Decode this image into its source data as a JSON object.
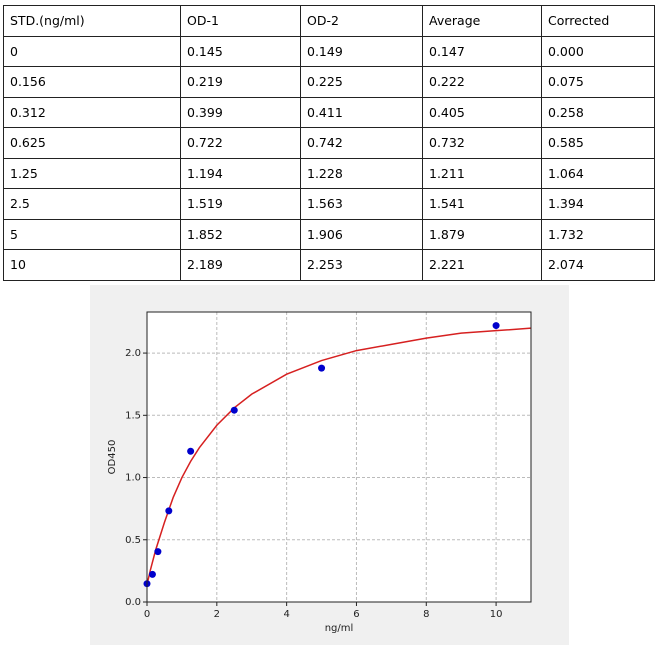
{
  "table": {
    "header": [
      "STD.(ng/ml)",
      "OD-1",
      "OD-2",
      "Average",
      "Corrected"
    ],
    "rows": [
      [
        "0",
        "0.145",
        "0.149",
        "0.147",
        "0.000"
      ],
      [
        "0.156",
        "0.219",
        "0.225",
        "0.222",
        "0.075"
      ],
      [
        "0.312",
        "0.399",
        "0.411",
        "0.405",
        "0.258"
      ],
      [
        "0.625",
        "0.722",
        "0.742",
        "0.732",
        "0.585"
      ],
      [
        "1.25",
        "1.194",
        "1.228",
        "1.211",
        "1.064"
      ],
      [
        "2.5",
        "1.519",
        "1.563",
        "1.541",
        "1.394"
      ],
      [
        "5",
        "1.852",
        "1.906",
        "1.879",
        "1.732"
      ],
      [
        "10",
        "2.189",
        "2.253",
        "2.221",
        "2.074"
      ]
    ]
  },
  "chart_data": {
    "type": "scatter",
    "xlabel": "ng/ml",
    "ylabel": "OD450",
    "xlim": [
      0,
      11
    ],
    "ylim": [
      0,
      2.33
    ],
    "xticks": [
      0,
      2,
      4,
      6,
      8,
      10
    ],
    "yticks": [
      {
        "value": 0,
        "label": "0.0"
      },
      {
        "value": 0.5,
        "label": "0.5"
      },
      {
        "value": 1,
        "label": "1.0"
      },
      {
        "value": 1.5,
        "label": "1.5"
      },
      {
        "value": 2,
        "label": "2.0"
      }
    ],
    "grid": true,
    "series": [
      {
        "type": "scatter",
        "color": "#0000cc",
        "x": [
          0,
          0.156,
          0.312,
          0.625,
          1.25,
          2.5,
          5,
          10
        ],
        "values": [
          0.147,
          0.222,
          0.405,
          0.732,
          1.211,
          1.541,
          1.879,
          2.221
        ]
      },
      {
        "type": "line",
        "color": "#d62020",
        "x": [
          0,
          0.1,
          0.25,
          0.5,
          0.75,
          1,
          1.25,
          1.5,
          2,
          2.5,
          3,
          4,
          5,
          6,
          7,
          8,
          9,
          10,
          11
        ],
        "values": [
          0.14,
          0.26,
          0.42,
          0.64,
          0.84,
          1.0,
          1.13,
          1.24,
          1.42,
          1.56,
          1.67,
          1.83,
          1.94,
          2.02,
          2.07,
          2.12,
          2.16,
          2.18,
          2.2
        ]
      }
    ]
  }
}
